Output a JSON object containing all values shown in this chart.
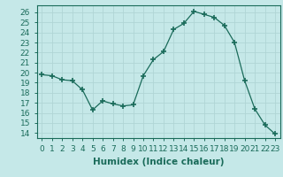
{
  "x": [
    0,
    1,
    2,
    3,
    4,
    5,
    6,
    7,
    8,
    9,
    10,
    11,
    12,
    13,
    14,
    15,
    16,
    17,
    18,
    19,
    20,
    21,
    22,
    23
  ],
  "y": [
    19.8,
    19.7,
    19.3,
    19.2,
    18.3,
    16.3,
    17.2,
    16.9,
    16.7,
    16.8,
    19.7,
    21.3,
    22.1,
    24.3,
    24.9,
    26.1,
    25.8,
    25.5,
    24.7,
    23.0,
    19.2,
    16.4,
    14.8,
    13.9
  ],
  "line_color": "#1a6b5a",
  "marker": "+",
  "markersize": 4,
  "bg_color": "#c5e8e8",
  "grid_color": "#b0d5d5",
  "xlabel": "Humidex (Indice chaleur)",
  "xlim": [
    -0.5,
    23.5
  ],
  "ylim": [
    13.5,
    26.7
  ],
  "yticks": [
    14,
    15,
    16,
    17,
    18,
    19,
    20,
    21,
    22,
    23,
    24,
    25,
    26
  ],
  "xticks": [
    0,
    1,
    2,
    3,
    4,
    5,
    6,
    7,
    8,
    9,
    10,
    11,
    12,
    13,
    14,
    15,
    16,
    17,
    18,
    19,
    20,
    21,
    22,
    23
  ],
  "tick_fontsize": 6.5,
  "label_fontsize": 7.5
}
